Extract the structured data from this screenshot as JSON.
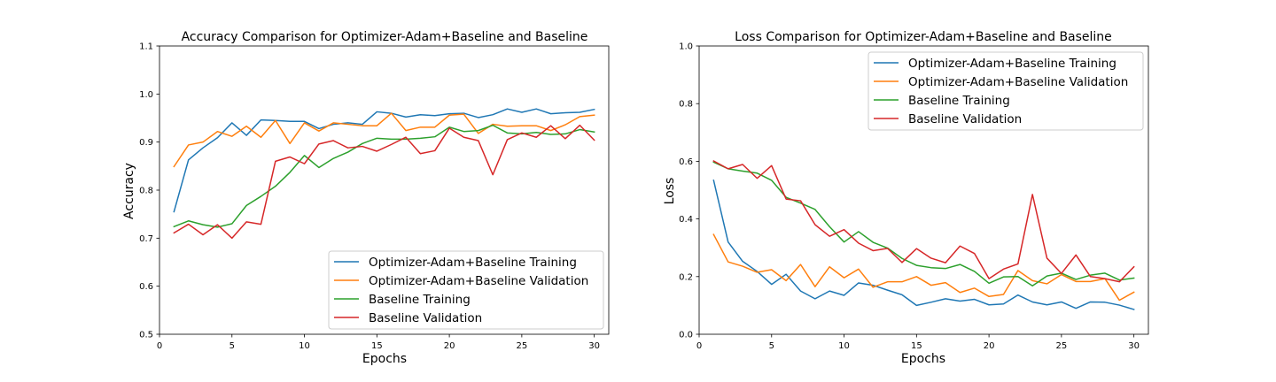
{
  "chart_data": [
    {
      "type": "line",
      "title": "Accuracy Comparison for Optimizer-Adam+Baseline and Baseline",
      "xlabel": "Epochs",
      "ylabel": "Accuracy",
      "xlim": [
        0,
        31
      ],
      "ylim": [
        0.5,
        1.1
      ],
      "xticks": [
        0,
        5,
        10,
        15,
        20,
        25,
        30
      ],
      "yticks": [
        0.5,
        0.6,
        0.7,
        0.8,
        0.9,
        1.0,
        1.1
      ],
      "ytick_labels": [
        "0.5",
        "0.6",
        "0.7",
        "0.8",
        "0.9",
        "1.0",
        "1.1"
      ],
      "legend_position": "lower-right",
      "grid": false,
      "x": [
        1,
        2,
        3,
        4,
        5,
        6,
        7,
        8,
        9,
        10,
        11,
        12,
        13,
        14,
        15,
        16,
        17,
        18,
        19,
        20,
        21,
        22,
        23,
        24,
        25,
        26,
        27,
        28,
        29,
        30
      ],
      "series": [
        {
          "name": "Optimizer-Adam+Baseline Training",
          "color": "#1f77b4",
          "values": [
            0.755,
            0.863,
            0.888,
            0.909,
            0.94,
            0.914,
            0.946,
            0.945,
            0.943,
            0.943,
            0.928,
            0.937,
            0.94,
            0.937,
            0.963,
            0.96,
            0.952,
            0.957,
            0.955,
            0.959,
            0.96,
            0.951,
            0.957,
            0.969,
            0.962,
            0.969,
            0.959,
            0.961,
            0.962,
            0.968
          ]
        },
        {
          "name": "Optimizer-Adam+Baseline Validation",
          "color": "#ff7f0e",
          "values": [
            0.849,
            0.894,
            0.9,
            0.922,
            0.912,
            0.933,
            0.91,
            0.945,
            0.897,
            0.94,
            0.923,
            0.94,
            0.937,
            0.934,
            0.934,
            0.96,
            0.924,
            0.931,
            0.931,
            0.956,
            0.958,
            0.918,
            0.937,
            0.933,
            0.934,
            0.934,
            0.924,
            0.936,
            0.953,
            0.956
          ]
        },
        {
          "name": "Baseline Training",
          "color": "#2ca02c",
          "values": [
            0.724,
            0.736,
            0.728,
            0.723,
            0.73,
            0.768,
            0.787,
            0.808,
            0.837,
            0.872,
            0.847,
            0.866,
            0.879,
            0.897,
            0.908,
            0.906,
            0.906,
            0.908,
            0.911,
            0.931,
            0.922,
            0.924,
            0.935,
            0.919,
            0.917,
            0.92,
            0.916,
            0.917,
            0.926,
            0.921
          ]
        },
        {
          "name": "Baseline Validation",
          "color": "#d62728",
          "values": [
            0.711,
            0.729,
            0.707,
            0.728,
            0.7,
            0.734,
            0.729,
            0.86,
            0.869,
            0.855,
            0.896,
            0.903,
            0.888,
            0.891,
            0.881,
            0.895,
            0.91,
            0.876,
            0.882,
            0.929,
            0.91,
            0.903,
            0.832,
            0.905,
            0.919,
            0.91,
            0.934,
            0.907,
            0.935,
            0.904
          ]
        }
      ]
    },
    {
      "type": "line",
      "title": "Loss Comparison for Optimizer-Adam+Baseline and Baseline",
      "xlabel": "Epochs",
      "ylabel": "Loss",
      "xlim": [
        0,
        31
      ],
      "ylim": [
        0.0,
        1.0
      ],
      "xticks": [
        0,
        5,
        10,
        15,
        20,
        25,
        30
      ],
      "yticks": [
        0.0,
        0.2,
        0.4,
        0.6,
        0.8,
        1.0
      ],
      "ytick_labels": [
        "0.0",
        "0.2",
        "0.4",
        "0.6",
        "0.8",
        "1.0"
      ],
      "legend_position": "upper-right",
      "grid": false,
      "x": [
        1,
        2,
        3,
        4,
        5,
        6,
        7,
        8,
        9,
        10,
        11,
        12,
        13,
        14,
        15,
        16,
        17,
        18,
        19,
        20,
        21,
        22,
        23,
        24,
        25,
        26,
        27,
        28,
        29,
        30
      ],
      "series": [
        {
          "name": "Optimizer-Adam+Baseline Training",
          "color": "#1f77b4",
          "values": [
            0.534,
            0.32,
            0.253,
            0.218,
            0.173,
            0.208,
            0.15,
            0.123,
            0.15,
            0.135,
            0.178,
            0.17,
            0.153,
            0.137,
            0.1,
            0.111,
            0.123,
            0.115,
            0.121,
            0.102,
            0.105,
            0.136,
            0.112,
            0.102,
            0.112,
            0.09,
            0.112,
            0.111,
            0.101,
            0.086
          ]
        },
        {
          "name": "Optimizer-Adam+Baseline Validation",
          "color": "#ff7f0e",
          "values": [
            0.346,
            0.251,
            0.236,
            0.215,
            0.224,
            0.186,
            0.242,
            0.165,
            0.234,
            0.196,
            0.226,
            0.163,
            0.182,
            0.182,
            0.2,
            0.17,
            0.179,
            0.145,
            0.16,
            0.131,
            0.138,
            0.221,
            0.186,
            0.175,
            0.207,
            0.183,
            0.183,
            0.193,
            0.118,
            0.146
          ]
        },
        {
          "name": "Baseline Training",
          "color": "#2ca02c",
          "values": [
            0.597,
            0.574,
            0.566,
            0.559,
            0.534,
            0.475,
            0.455,
            0.433,
            0.373,
            0.32,
            0.356,
            0.319,
            0.299,
            0.263,
            0.239,
            0.231,
            0.228,
            0.242,
            0.218,
            0.177,
            0.199,
            0.2,
            0.168,
            0.202,
            0.212,
            0.19,
            0.205,
            0.212,
            0.188,
            0.195
          ]
        },
        {
          "name": "Baseline Validation",
          "color": "#d62728",
          "values": [
            0.601,
            0.574,
            0.589,
            0.541,
            0.585,
            0.469,
            0.463,
            0.38,
            0.34,
            0.363,
            0.316,
            0.29,
            0.298,
            0.249,
            0.297,
            0.264,
            0.248,
            0.306,
            0.28,
            0.193,
            0.226,
            0.244,
            0.485,
            0.264,
            0.211,
            0.275,
            0.2,
            0.193,
            0.182,
            0.234
          ]
        }
      ]
    }
  ]
}
